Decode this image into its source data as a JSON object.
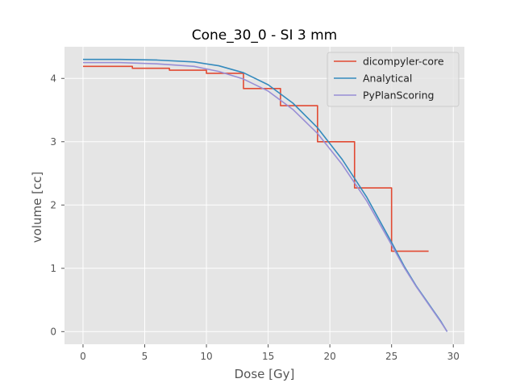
{
  "chart_data": {
    "type": "line",
    "title": "Cone_30_0 - SI 3 mm",
    "xlabel": "Dose [Gy]",
    "ylabel": "volume [cc]",
    "xlim": [
      -1.5,
      30.9
    ],
    "ylim": [
      -0.2,
      4.5
    ],
    "xticks": [
      0,
      5,
      10,
      15,
      20,
      25,
      30
    ],
    "yticks": [
      0,
      1,
      2,
      3,
      4
    ],
    "grid": true,
    "legend_position": "top-right",
    "style": {
      "background": "#e5e5e5",
      "grid_color": "#ffffff"
    },
    "series": [
      {
        "name": "dicompyler-core",
        "color": "#e24a33",
        "step": true,
        "x": [
          0,
          4,
          7,
          10,
          13,
          16,
          19,
          22,
          25,
          28
        ],
        "y": [
          4.19,
          4.16,
          4.13,
          4.08,
          3.84,
          3.57,
          3.0,
          2.27,
          1.27,
          1.27
        ]
      },
      {
        "name": "Analytical",
        "color": "#348abd",
        "step": false,
        "x": [
          0,
          3,
          6,
          9,
          11,
          13,
          15,
          17,
          19,
          21,
          23,
          25,
          26,
          27,
          28,
          29,
          29.5
        ],
        "y": [
          4.3,
          4.3,
          4.29,
          4.26,
          4.2,
          4.09,
          3.9,
          3.61,
          3.22,
          2.72,
          2.12,
          1.41,
          1.04,
          0.72,
          0.44,
          0.16,
          0.0
        ]
      },
      {
        "name": "PyPlanScoring",
        "color": "#988ed5",
        "step": false,
        "x": [
          0,
          3,
          6,
          9,
          11,
          13,
          15,
          17,
          19,
          21,
          23,
          25,
          26,
          27,
          28,
          29,
          29.5
        ],
        "y": [
          4.25,
          4.25,
          4.23,
          4.19,
          4.11,
          3.99,
          3.8,
          3.51,
          3.13,
          2.64,
          2.06,
          1.37,
          1.02,
          0.71,
          0.43,
          0.15,
          0.0
        ]
      }
    ]
  }
}
